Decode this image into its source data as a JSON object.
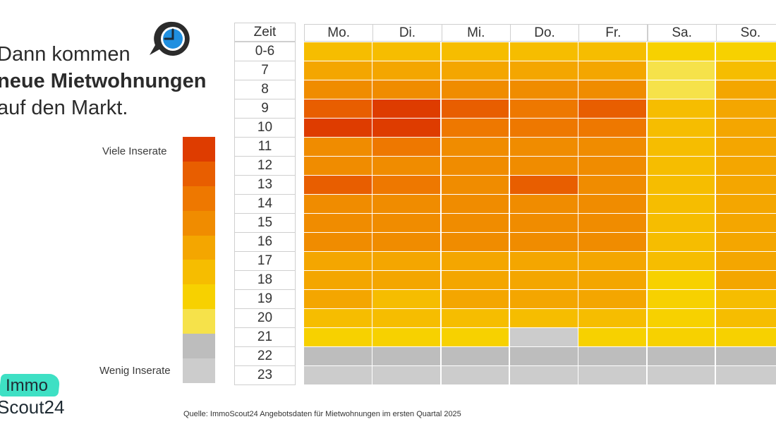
{
  "headline": {
    "line1": "Dann kommen",
    "line2": "neue Mietwohnungen",
    "line3": "auf den Markt."
  },
  "icons": {
    "clock": "clock-speech-bubble-icon"
  },
  "legend": {
    "top_label": "Viele Inserate",
    "bottom_label": "Wenig Inserate",
    "levels": 10
  },
  "colors": {
    "level_1": "#cccccc",
    "level_2": "#bdbdbd",
    "level_3": "#f6e24a",
    "level_4": "#f7d100",
    "level_5": "#f6bd00",
    "level_6": "#f4a600",
    "level_7": "#f08c00",
    "level_8": "#ee7800",
    "level_9": "#e85e00",
    "level_10": "#de3c00"
  },
  "chart_data": {
    "type": "heatmap",
    "row_header": "Zeit",
    "columns": [
      "Mo.",
      "Di.",
      "Mi.",
      "Do.",
      "Fr.",
      "Sa.",
      "So."
    ],
    "rows": [
      "0-6",
      "7",
      "8",
      "9",
      "10",
      "11",
      "12",
      "13",
      "14",
      "15",
      "16",
      "17",
      "18",
      "19",
      "20",
      "21",
      "22",
      "23"
    ],
    "scale": "1 = Wenig Inserate, 10 = Viele Inserate",
    "values": [
      [
        5,
        5,
        5,
        5,
        5,
        4,
        4
      ],
      [
        6,
        6,
        6,
        6,
        6,
        3,
        5
      ],
      [
        7,
        7,
        7,
        7,
        7,
        3,
        6
      ],
      [
        9,
        10,
        9,
        8,
        9,
        5,
        6
      ],
      [
        10,
        10,
        8,
        8,
        8,
        5,
        6
      ],
      [
        7,
        8,
        7,
        7,
        7,
        5,
        6
      ],
      [
        7,
        7,
        7,
        7,
        7,
        5,
        6
      ],
      [
        9,
        8,
        7,
        9,
        7,
        5,
        6
      ],
      [
        7,
        7,
        7,
        7,
        7,
        5,
        6
      ],
      [
        7,
        7,
        7,
        7,
        7,
        5,
        6
      ],
      [
        7,
        7,
        7,
        7,
        7,
        5,
        6
      ],
      [
        6,
        6,
        6,
        6,
        6,
        5,
        6
      ],
      [
        6,
        6,
        6,
        6,
        6,
        4,
        6
      ],
      [
        6,
        5,
        6,
        6,
        6,
        4,
        5
      ],
      [
        5,
        5,
        5,
        5,
        5,
        4,
        5
      ],
      [
        4,
        4,
        4,
        1,
        4,
        4,
        4
      ],
      [
        2,
        2,
        2,
        2,
        2,
        2,
        2
      ],
      [
        1,
        1,
        1,
        1,
        1,
        1,
        1
      ]
    ]
  },
  "source": "Quelle: ImmoScout24 Angebotsdaten für Mietwohnungen im ersten Quartal 2025",
  "logo": {
    "top": "Immo",
    "bottom": "Scout24"
  }
}
